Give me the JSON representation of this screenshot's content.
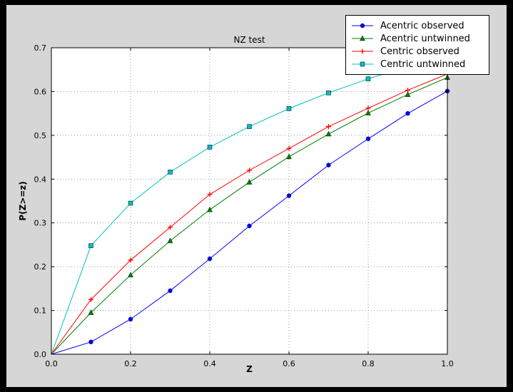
{
  "window": {
    "outer_bg": "#000000",
    "figure_bg": "#d6d6d6",
    "axes_bg": "#ffffff",
    "grid_color": "#9a9a9a",
    "frame_color": "#000000"
  },
  "chart_data": {
    "type": "line",
    "title": "NZ test",
    "xlabel": "Z",
    "ylabel": "P(Z>=z)",
    "xlim": [
      0.0,
      1.0
    ],
    "ylim": [
      0.0,
      0.7
    ],
    "xticks": [
      0.0,
      0.2,
      0.4,
      0.6,
      0.8,
      1.0
    ],
    "xtick_labels": [
      "0.0",
      "0.2",
      "0.4",
      "0.6",
      "0.8",
      "1.0"
    ],
    "yticks": [
      0.0,
      0.1,
      0.2,
      0.3,
      0.4,
      0.5,
      0.6,
      0.7
    ],
    "ytick_labels": [
      "0.0",
      "0.1",
      "0.2",
      "0.3",
      "0.4",
      "0.5",
      "0.6",
      "0.7"
    ],
    "grid": true,
    "legend_position": "upper right",
    "x": [
      0.0,
      0.1,
      0.2,
      0.3,
      0.4,
      0.5,
      0.6,
      0.7,
      0.8,
      0.9,
      1.0
    ],
    "series": [
      {
        "name": "Acentric observed",
        "color": "#0000ff",
        "marker": "circle",
        "values": [
          0.0,
          0.028,
          0.08,
          0.145,
          0.218,
          0.293,
          0.362,
          0.432,
          0.492,
          0.55,
          0.601
        ]
      },
      {
        "name": "Acentric untwinned",
        "color": "#007e00",
        "marker": "triangle",
        "values": [
          0.0,
          0.095,
          0.181,
          0.259,
          0.33,
          0.393,
          0.451,
          0.503,
          0.551,
          0.593,
          0.632
        ]
      },
      {
        "name": "Centric observed",
        "color": "#ff0000",
        "marker": "plus",
        "values": [
          0.0,
          0.125,
          0.215,
          0.29,
          0.365,
          0.42,
          0.47,
          0.52,
          0.562,
          0.603,
          0.64
        ]
      },
      {
        "name": "Centric untwinned",
        "color": "#00bfbf",
        "marker": "square",
        "values": [
          0.0,
          0.248,
          0.345,
          0.416,
          0.473,
          0.52,
          0.561,
          0.597,
          0.629,
          0.657,
          0.683
        ]
      }
    ]
  }
}
